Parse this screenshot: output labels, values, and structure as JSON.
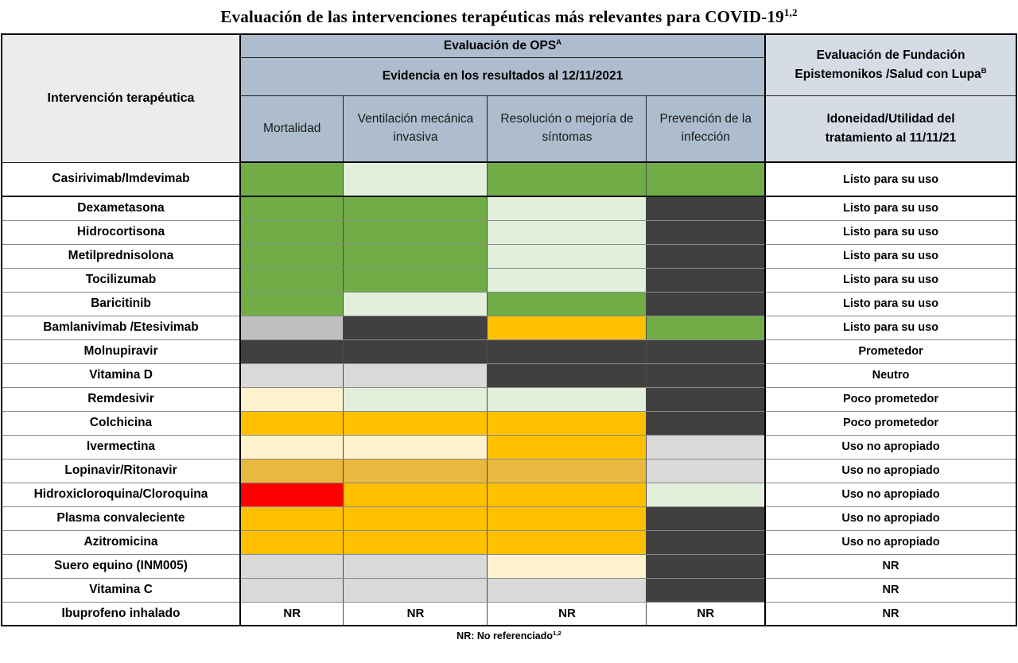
{
  "title": {
    "text": "Evaluación de las intervenciones terapéuticas más relevantes para COVID-19",
    "superscript": "1,2"
  },
  "colors": {
    "green": "#70AD47",
    "palegreen": "#E2EFDA",
    "dark": "#404040",
    "gray": "#BFBFBF",
    "lightgray": "#D9D9D9",
    "cream": "#FFF2CC",
    "orange": "#FFC000",
    "mustard": "#E9B83E",
    "red": "#FF0000",
    "white": "#FFFFFF",
    "header_blue": "#ADBDCD",
    "header_blue_light": "#D6DCE5",
    "label_header_bg": "#ECECEC"
  },
  "header": {
    "intervention_col": "Intervención terapéutica",
    "ops_title": "Evaluación de OPS",
    "ops_superscript": "A",
    "evidence_title": "Evidencia en los resultados al 12/11/2021",
    "fundacion_title": "Evaluación de Fundación Epistemonikos /Salud con Lupa",
    "fundacion_superscript": "B",
    "fundacion_sub": "Idoneidad/Utilidad del tratamiento al 11/11/21"
  },
  "chart_data": {
    "type": "table",
    "title": "Evaluación de las intervenciones terapéuticas más relevantes para COVID-19",
    "outcome_headers": [
      "Mortalidad",
      "Ventilación mecánica invasiva",
      "Resolución o mejoría de síntomas",
      "Prevención de la infección"
    ],
    "outcome_keys": [
      "mortalidad",
      "ventilacion-mecanica-invasiva",
      "resolucion-mejoria-sintomas",
      "prevencion-infeccion"
    ],
    "evaluation_header": "Idoneidad/Utilidad del tratamiento al 11/11/21",
    "rows": [
      {
        "name": "Casirivimab/Imdevimab",
        "cells": [
          {
            "color": "green",
            "text": ""
          },
          {
            "color": "palegreen",
            "text": ""
          },
          {
            "color": "green",
            "text": ""
          },
          {
            "color": "green",
            "text": ""
          }
        ],
        "evaluation": "Listo para su uso"
      },
      {
        "name": "Dexametasona",
        "cells": [
          {
            "color": "green",
            "text": ""
          },
          {
            "color": "green",
            "text": ""
          },
          {
            "color": "palegreen",
            "text": ""
          },
          {
            "color": "dark",
            "text": ""
          }
        ],
        "evaluation": "Listo para su uso"
      },
      {
        "name": "Hidrocortisona",
        "cells": [
          {
            "color": "green",
            "text": ""
          },
          {
            "color": "green",
            "text": ""
          },
          {
            "color": "palegreen",
            "text": ""
          },
          {
            "color": "dark",
            "text": ""
          }
        ],
        "evaluation": "Listo para su uso"
      },
      {
        "name": "Metilprednisolona",
        "cells": [
          {
            "color": "green",
            "text": ""
          },
          {
            "color": "green",
            "text": ""
          },
          {
            "color": "palegreen",
            "text": ""
          },
          {
            "color": "dark",
            "text": ""
          }
        ],
        "evaluation": "Listo para su uso"
      },
      {
        "name": "Tocilizumab",
        "cells": [
          {
            "color": "green",
            "text": ""
          },
          {
            "color": "green",
            "text": ""
          },
          {
            "color": "palegreen",
            "text": ""
          },
          {
            "color": "dark",
            "text": ""
          }
        ],
        "evaluation": "Listo para su uso"
      },
      {
        "name": "Baricitinib",
        "cells": [
          {
            "color": "green",
            "text": ""
          },
          {
            "color": "palegreen",
            "text": ""
          },
          {
            "color": "green",
            "text": ""
          },
          {
            "color": "dark",
            "text": ""
          }
        ],
        "evaluation": "Listo para su uso"
      },
      {
        "name": "Bamlanivimab /Etesivimab",
        "cells": [
          {
            "color": "gray",
            "text": ""
          },
          {
            "color": "dark",
            "text": ""
          },
          {
            "color": "orange",
            "text": ""
          },
          {
            "color": "green",
            "text": ""
          }
        ],
        "evaluation": "Listo para su uso"
      },
      {
        "name": "Molnupiravir",
        "cells": [
          {
            "color": "dark",
            "text": ""
          },
          {
            "color": "dark",
            "text": ""
          },
          {
            "color": "dark",
            "text": ""
          },
          {
            "color": "dark",
            "text": ""
          }
        ],
        "evaluation": "Prometedor"
      },
      {
        "name": "Vitamina D",
        "cells": [
          {
            "color": "lightgray",
            "text": ""
          },
          {
            "color": "lightgray",
            "text": ""
          },
          {
            "color": "dark",
            "text": ""
          },
          {
            "color": "dark",
            "text": ""
          }
        ],
        "evaluation": "Neutro"
      },
      {
        "name": "Remdesivir",
        "cells": [
          {
            "color": "cream",
            "text": ""
          },
          {
            "color": "palegreen",
            "text": ""
          },
          {
            "color": "palegreen",
            "text": ""
          },
          {
            "color": "dark",
            "text": ""
          }
        ],
        "evaluation": "Poco prometedor"
      },
      {
        "name": "Colchicina",
        "cells": [
          {
            "color": "orange",
            "text": ""
          },
          {
            "color": "orange",
            "text": ""
          },
          {
            "color": "orange",
            "text": ""
          },
          {
            "color": "dark",
            "text": ""
          }
        ],
        "evaluation": "Poco prometedor"
      },
      {
        "name": "Ivermectina",
        "cells": [
          {
            "color": "cream",
            "text": ""
          },
          {
            "color": "cream",
            "text": ""
          },
          {
            "color": "orange",
            "text": ""
          },
          {
            "color": "lightgray",
            "text": ""
          }
        ],
        "evaluation": "Uso no apropiado"
      },
      {
        "name": "Lopinavir/Ritonavir",
        "cells": [
          {
            "color": "mustard",
            "text": ""
          },
          {
            "color": "mustard",
            "text": ""
          },
          {
            "color": "mustard",
            "text": ""
          },
          {
            "color": "lightgray",
            "text": ""
          }
        ],
        "evaluation": "Uso no apropiado"
      },
      {
        "name": "Hidroxicloroquina/Cloroquina",
        "cells": [
          {
            "color": "red",
            "text": ""
          },
          {
            "color": "orange",
            "text": ""
          },
          {
            "color": "orange",
            "text": ""
          },
          {
            "color": "palegreen",
            "text": ""
          }
        ],
        "evaluation": "Uso no apropiado"
      },
      {
        "name": "Plasma convaleciente",
        "cells": [
          {
            "color": "orange",
            "text": ""
          },
          {
            "color": "orange",
            "text": ""
          },
          {
            "color": "orange",
            "text": ""
          },
          {
            "color": "dark",
            "text": ""
          }
        ],
        "evaluation": "Uso no apropiado"
      },
      {
        "name": "Azitromicina",
        "cells": [
          {
            "color": "orange",
            "text": ""
          },
          {
            "color": "orange",
            "text": ""
          },
          {
            "color": "orange",
            "text": ""
          },
          {
            "color": "dark",
            "text": ""
          }
        ],
        "evaluation": "Uso no apropiado"
      },
      {
        "name": "Suero equino (INM005)",
        "cells": [
          {
            "color": "lightgray",
            "text": ""
          },
          {
            "color": "lightgray",
            "text": ""
          },
          {
            "color": "cream",
            "text": ""
          },
          {
            "color": "dark",
            "text": ""
          }
        ],
        "evaluation": "NR"
      },
      {
        "name": "Vitamina C",
        "cells": [
          {
            "color": "lightgray",
            "text": ""
          },
          {
            "color": "lightgray",
            "text": ""
          },
          {
            "color": "lightgray",
            "text": ""
          },
          {
            "color": "dark",
            "text": ""
          }
        ],
        "evaluation": "NR"
      },
      {
        "name": "Ibuprofeno inhalado",
        "cells": [
          {
            "color": "white",
            "text": "NR"
          },
          {
            "color": "white",
            "text": "NR"
          },
          {
            "color": "white",
            "text": "NR"
          },
          {
            "color": "white",
            "text": "NR"
          }
        ],
        "evaluation": "NR"
      }
    ]
  },
  "footer": {
    "note": "NR: No referenciado",
    "note_superscript": "1,2"
  }
}
